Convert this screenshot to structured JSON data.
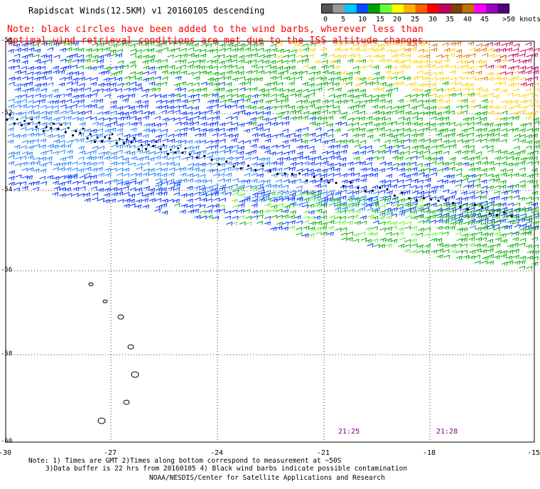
{
  "title": "Rapidscat Winds(12.5KM) v1 20160105 descending",
  "note_line1": "Note: black circles have been added to the wind barbs, wherever less than",
  "note_line2": "  optimal wind retrieval conditions are met due to the ISS altitude changes.",
  "legend": {
    "labels": [
      "0",
      "5",
      "10",
      "15",
      "20",
      "25",
      "30",
      "35",
      "40",
      "45",
      ">50 knots"
    ],
    "colors": [
      "#555555",
      "#9a9a9a",
      "#00c8ff",
      "#0050ff",
      "#00a000",
      "#66ff33",
      "#ffff00",
      "#ffb000",
      "#ff6000",
      "#ff0000",
      "#c00060",
      "#804000",
      "#c07000",
      "#ff00ff",
      "#a000c0",
      "#500080"
    ]
  },
  "axes": {
    "lat_labels": [
      "-50",
      "-52",
      "-54",
      "-56",
      "-58",
      "-60"
    ],
    "lon_labels": [
      "-30",
      "-27",
      "-24",
      "-21",
      "-18",
      "-15"
    ]
  },
  "times": [
    "21:25",
    "21:28"
  ],
  "footer": {
    "line1": "Note: 1) Times are GMT 2)Times along bottom correspond to measurement at ~50S",
    "line2": "3)Data buffer is 22 hrs from 20160105 4) Black wind barbs indicate possible contamination",
    "line3": "NOAA/NESDIS/Center for Satellite Applications and Research"
  },
  "map_data": {
    "swath_top": {
      "wind_kts": [
        12,
        18,
        22,
        28,
        35
      ]
    },
    "swath_bottom": {
      "wind_kts": [
        10,
        14,
        17
      ]
    },
    "flagged_circles": true,
    "islands": 7
  }
}
